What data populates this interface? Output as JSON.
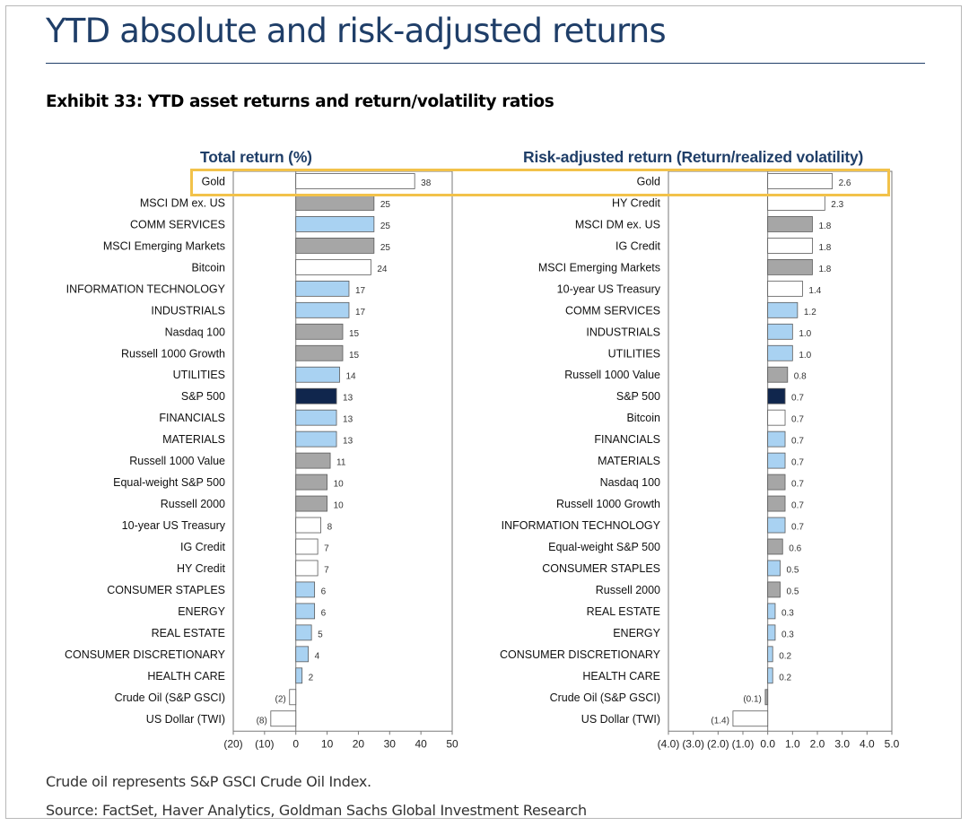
{
  "title": "YTD absolute and risk-adjusted returns",
  "exhibit": "Exhibit 33: YTD asset returns and return/volatility ratios",
  "footnote": "Crude oil represents S&P GSCI Crude Oil Index.",
  "source": "Source: FactSet, Haver Analytics, Goldman Sachs Global Investment Research",
  "colors": {
    "title": "#1f3e68",
    "highlight": "#f2c24a",
    "gray": "#a6a6a6",
    "light_blue": "#a9d2f2",
    "navy": "#10264d",
    "white": "#ffffff",
    "outline": "#5a5a5a"
  },
  "chart_data": [
    {
      "type": "bar",
      "orientation": "horizontal",
      "title": "Total return (%)",
      "categories": [
        "Gold",
        "MSCI DM ex. US",
        "COMM SERVICES",
        "MSCI Emerging Markets",
        "Bitcoin",
        "INFORMATION TECHNOLOGY",
        "INDUSTRIALS",
        "Nasdaq 100",
        "Russell 1000 Growth",
        "UTILITIES",
        "S&P 500",
        "FINANCIALS",
        "MATERIALS",
        "Russell 1000 Value",
        "Equal-weight S&P 500",
        "Russell 2000",
        "10-year US Treasury",
        "IG Credit",
        "HY Credit",
        "CONSUMER STAPLES",
        "ENERGY",
        "REAL ESTATE",
        "CONSUMER DISCRETIONARY",
        "HEALTH CARE",
        "Crude Oil (S&P GSCI)",
        "US Dollar (TWI)"
      ],
      "values": [
        38,
        25,
        25,
        25,
        24,
        17,
        17,
        15,
        15,
        14,
        13,
        13,
        13,
        11,
        10,
        10,
        8,
        7,
        7,
        6,
        6,
        5,
        4,
        2,
        -2,
        -8
      ],
      "labels": [
        "38",
        "25",
        "25",
        "25",
        "24",
        "17",
        "17",
        "15",
        "15",
        "14",
        "13",
        "13",
        "13",
        "11",
        "10",
        "10",
        "8",
        "7",
        "7",
        "6",
        "6",
        "5",
        "4",
        "2",
        "(2)",
        "(8)"
      ],
      "fills": [
        "white",
        "gray",
        "light_blue",
        "gray",
        "white",
        "light_blue",
        "light_blue",
        "gray",
        "gray",
        "light_blue",
        "navy",
        "light_blue",
        "light_blue",
        "gray",
        "gray",
        "gray",
        "white",
        "white",
        "white",
        "light_blue",
        "light_blue",
        "light_blue",
        "light_blue",
        "light_blue",
        "white",
        "white"
      ],
      "xlim": [
        -20,
        50
      ],
      "ticks": [
        -20,
        -10,
        0,
        10,
        20,
        30,
        40,
        50
      ],
      "tick_labels": [
        "(20)",
        "(10)",
        "0",
        "10",
        "20",
        "30",
        "40",
        "50"
      ],
      "grid": false
    },
    {
      "type": "bar",
      "orientation": "horizontal",
      "title": "Risk-adjusted return (Return/realized volatility)",
      "categories": [
        "Gold",
        "HY Credit",
        "MSCI DM ex. US",
        "IG Credit",
        "MSCI Emerging Markets",
        "10-year US Treasury",
        "COMM SERVICES",
        "INDUSTRIALS",
        "UTILITIES",
        "Russell 1000 Value",
        "S&P 500",
        "Bitcoin",
        "FINANCIALS",
        "MATERIALS",
        "Nasdaq 100",
        "Russell 1000 Growth",
        "INFORMATION TECHNOLOGY",
        "Equal-weight S&P 500",
        "CONSUMER STAPLES",
        "Russell 2000",
        "REAL ESTATE",
        "ENERGY",
        "CONSUMER DISCRETIONARY",
        "HEALTH CARE",
        "Crude Oil (S&P GSCI)",
        "US Dollar (TWI)"
      ],
      "values": [
        2.6,
        2.3,
        1.8,
        1.8,
        1.8,
        1.4,
        1.2,
        1.0,
        1.0,
        0.8,
        0.7,
        0.7,
        0.7,
        0.7,
        0.7,
        0.7,
        0.7,
        0.6,
        0.5,
        0.5,
        0.3,
        0.3,
        0.2,
        0.2,
        -0.1,
        -1.4
      ],
      "labels": [
        "2.6",
        "2.3",
        "1.8",
        "1.8",
        "1.8",
        "1.4",
        "1.2",
        "1.0",
        "1.0",
        "0.8",
        "0.7",
        "0.7",
        "0.7",
        "0.7",
        "0.7",
        "0.7",
        "0.7",
        "0.6",
        "0.5",
        "0.5",
        "0.3",
        "0.3",
        "0.2",
        "0.2",
        "(0.1)",
        "(1.4)"
      ],
      "fills": [
        "white",
        "white",
        "gray",
        "white",
        "gray",
        "white",
        "light_blue",
        "light_blue",
        "light_blue",
        "gray",
        "navy",
        "white",
        "light_blue",
        "light_blue",
        "gray",
        "gray",
        "light_blue",
        "gray",
        "light_blue",
        "gray",
        "light_blue",
        "light_blue",
        "light_blue",
        "light_blue",
        "gray",
        "white"
      ],
      "xlim": [
        -4.0,
        5.0
      ],
      "ticks": [
        -4,
        -3,
        -2,
        -1,
        0,
        1,
        2,
        3,
        4,
        5
      ],
      "tick_labels": [
        "(4.0)",
        "(3.0)",
        "(2.0)",
        "(1.0)",
        "0.0",
        "1.0",
        "2.0",
        "3.0",
        "4.0",
        "5.0"
      ],
      "grid": false
    }
  ]
}
